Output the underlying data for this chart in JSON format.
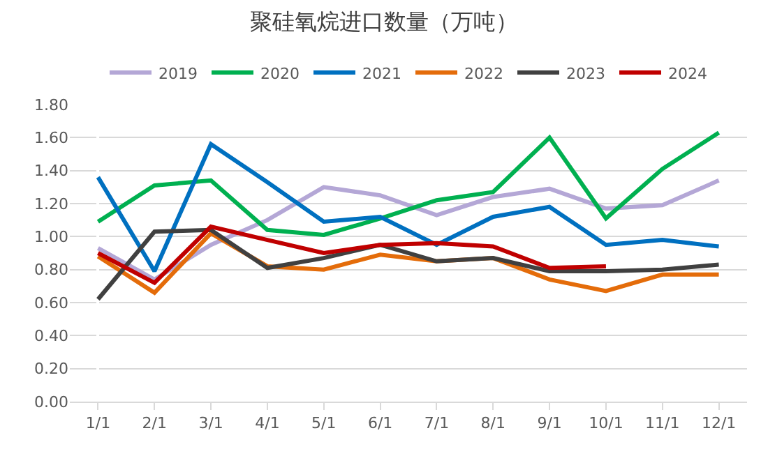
{
  "chart_data": {
    "type": "line",
    "title": "聚硅氧烷进口数量（万吨）",
    "categories": [
      "1/1",
      "2/1",
      "3/1",
      "4/1",
      "5/1",
      "6/1",
      "7/1",
      "8/1",
      "9/1",
      "10/1",
      "11/1",
      "12/1"
    ],
    "series": [
      {
        "name": "2019",
        "color": "#b4a7d6",
        "values": [
          0.93,
          0.74,
          0.95,
          1.1,
          1.3,
          1.25,
          1.13,
          1.24,
          1.29,
          1.17,
          1.19,
          1.34
        ]
      },
      {
        "name": "2020",
        "color": "#00b050",
        "values": [
          1.09,
          1.31,
          1.34,
          1.04,
          1.01,
          1.11,
          1.22,
          1.27,
          1.6,
          1.11,
          1.41,
          1.63
        ]
      },
      {
        "name": "2021",
        "color": "#0070c0",
        "values": [
          1.36,
          0.79,
          1.56,
          1.33,
          1.09,
          1.12,
          0.95,
          1.12,
          1.18,
          0.95,
          0.98,
          0.94
        ]
      },
      {
        "name": "2022",
        "color": "#e46c0a",
        "values": [
          0.88,
          0.66,
          1.02,
          0.82,
          0.8,
          0.89,
          0.85,
          0.87,
          0.74,
          0.67,
          0.77,
          0.77
        ]
      },
      {
        "name": "2023",
        "color": "#404040",
        "values": [
          0.62,
          1.03,
          1.04,
          0.81,
          0.87,
          0.95,
          0.85,
          0.87,
          0.79,
          0.79,
          0.8,
          0.83
        ]
      },
      {
        "name": "2024",
        "color": "#c00000",
        "values": [
          0.9,
          0.72,
          1.06,
          0.98,
          0.9,
          0.95,
          0.96,
          0.94,
          0.81,
          0.82,
          null,
          null
        ]
      }
    ],
    "ylim": [
      0,
      1.8
    ],
    "yticks": [
      {
        "value": 0,
        "label": "0.00"
      },
      {
        "value": 0.2,
        "label": "0.20"
      },
      {
        "value": 0.4,
        "label": "0.40"
      },
      {
        "value": 0.6,
        "label": "0.60"
      },
      {
        "value": 0.8,
        "label": "0.80"
      },
      {
        "value": 1.0,
        "label": "1.00"
      },
      {
        "value": 1.2,
        "label": "1.20"
      },
      {
        "value": 1.4,
        "label": "1.40"
      },
      {
        "value": 1.6,
        "label": "1.60"
      },
      {
        "value": 1.8,
        "label": "1.80"
      }
    ],
    "grid": "y",
    "legend": "top",
    "marker": "none",
    "line_style": "solid"
  }
}
